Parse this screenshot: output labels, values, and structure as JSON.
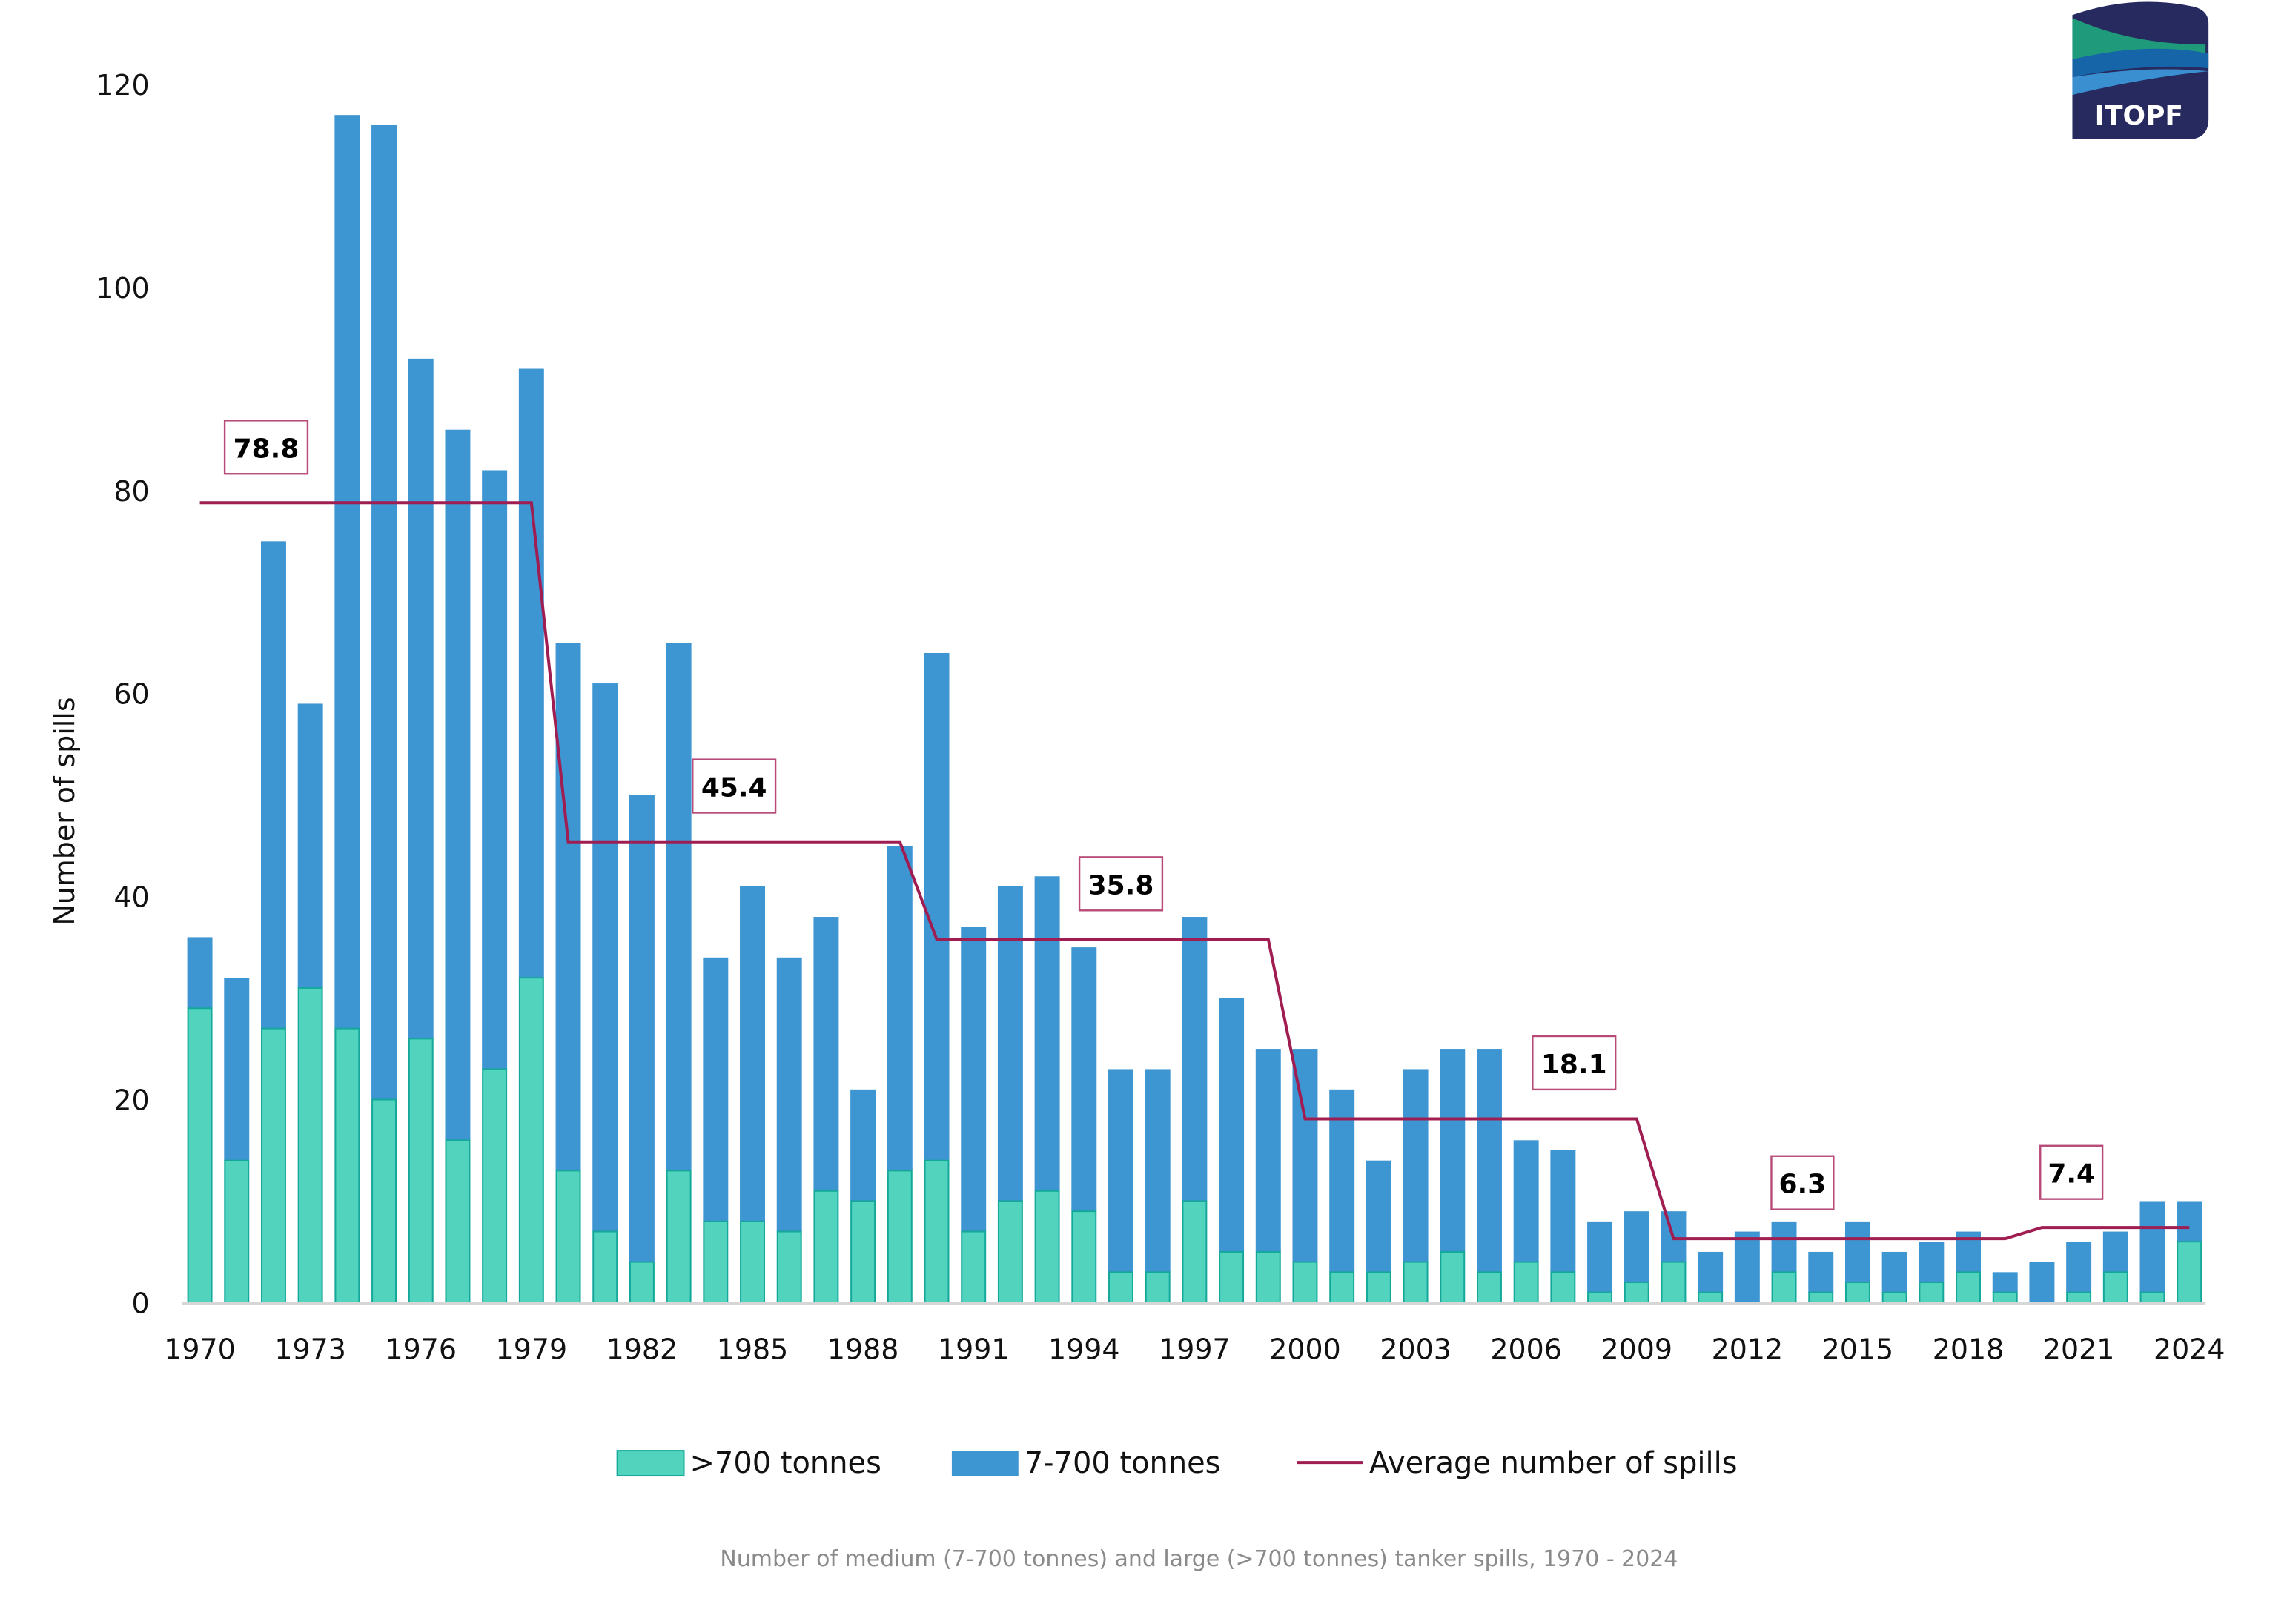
{
  "logo": {
    "text": "ITOPF"
  },
  "chart_data": {
    "type": "bar",
    "stacked": true,
    "caption": "Number of medium (7-700 tonnes) and large (>700 tonnes) tanker spills, 1970 - 2024",
    "ylabel": "Number of spills",
    "xlabel": "",
    "ylim": [
      0,
      120
    ],
    "yticks": [
      0,
      20,
      40,
      60,
      80,
      100,
      120
    ],
    "xtick_labels": [
      "1970",
      "1973",
      "1976",
      "1979",
      "1982",
      "1985",
      "1988",
      "1991",
      "1994",
      "1997",
      "2000",
      "2003",
      "2006",
      "2009",
      "2012",
      "2015",
      "2018",
      "2021",
      "2024"
    ],
    "grid": false,
    "legend_placement": "bottom",
    "years": [
      1970,
      1971,
      1972,
      1973,
      1974,
      1975,
      1976,
      1977,
      1978,
      1979,
      1980,
      1981,
      1982,
      1983,
      1984,
      1985,
      1986,
      1987,
      1988,
      1989,
      1990,
      1991,
      1992,
      1993,
      1994,
      1995,
      1996,
      1997,
      1998,
      1999,
      2000,
      2001,
      2002,
      2003,
      2004,
      2005,
      2006,
      2007,
      2008,
      2009,
      2010,
      2011,
      2012,
      2013,
      2014,
      2015,
      2016,
      2017,
      2018,
      2019,
      2020,
      2021,
      2022,
      2023,
      2024
    ],
    "series": [
      {
        "name": ">700 tonnes",
        "color": "#52d3be",
        "values": [
          29,
          14,
          27,
          31,
          27,
          20,
          26,
          16,
          23,
          32,
          13,
          7,
          4,
          13,
          8,
          8,
          7,
          11,
          10,
          13,
          14,
          7,
          10,
          11,
          9,
          3,
          3,
          10,
          5,
          5,
          4,
          3,
          3,
          4,
          5,
          3,
          4,
          3,
          1,
          2,
          4,
          1,
          0,
          3,
          1,
          2,
          1,
          2,
          3,
          1,
          0,
          1,
          3,
          1,
          6
        ]
      },
      {
        "name": "7-700 tonnes",
        "color": "#3d95d2",
        "values": [
          7,
          18,
          48,
          28,
          90,
          96,
          67,
          70,
          59,
          60,
          52,
          54,
          46,
          52,
          26,
          33,
          27,
          27,
          11,
          32,
          50,
          30,
          31,
          31,
          26,
          20,
          20,
          28,
          25,
          20,
          21,
          18,
          11,
          19,
          20,
          22,
          12,
          12,
          7,
          7,
          5,
          4,
          7,
          5,
          4,
          6,
          4,
          4,
          4,
          2,
          4,
          5,
          4,
          9,
          4
        ]
      }
    ],
    "average_line": {
      "name": "Average number of spills",
      "color": "#a01d52",
      "segments": [
        {
          "from": 1970,
          "to": 1979,
          "value": 78.8,
          "label": "78.8"
        },
        {
          "from": 1980,
          "to": 1989,
          "value": 45.4,
          "label": "45.4"
        },
        {
          "from": 1990,
          "to": 1999,
          "value": 35.8,
          "label": "35.8"
        },
        {
          "from": 2000,
          "to": 2009,
          "value": 18.1,
          "label": "18.1"
        },
        {
          "from": 2010,
          "to": 2019,
          "value": 6.3,
          "label": "6.3"
        },
        {
          "from": 2020,
          "to": 2024,
          "value": 7.4,
          "label": "7.4"
        }
      ]
    }
  }
}
